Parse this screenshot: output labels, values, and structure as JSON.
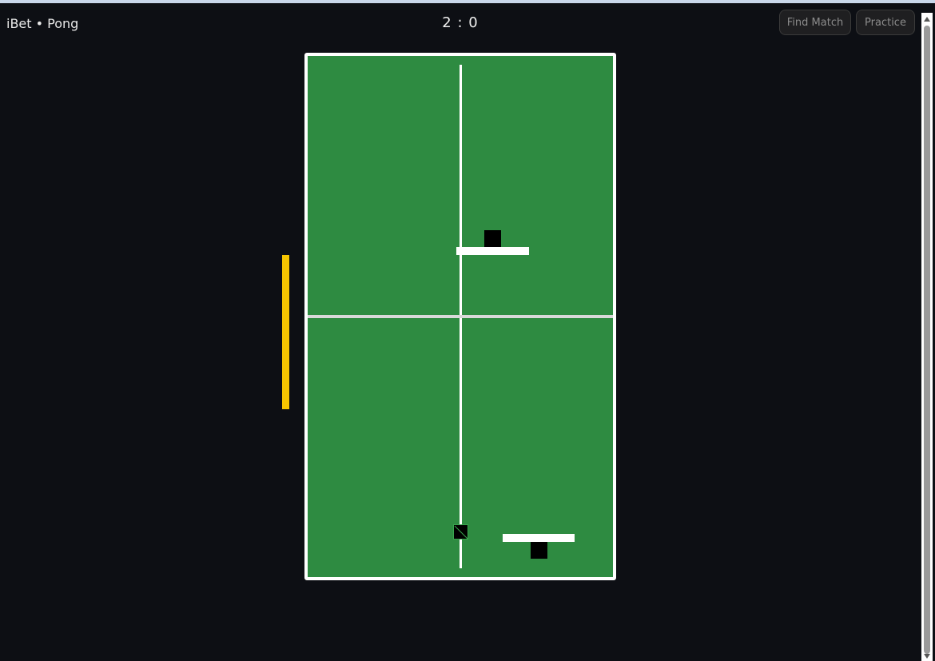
{
  "app": {
    "title": "iBet • Pong"
  },
  "scoreboard": {
    "score": "2 : 0"
  },
  "toolbar": {
    "find_match_label": "Find Match",
    "practice_label": "Practice"
  },
  "colors": {
    "background": "#0d0f14",
    "table": "#2e8b41",
    "lines": "#ffffff",
    "net": "#d9d9d9",
    "paddles": "#ffffff",
    "players": "#000000",
    "side_bar": "#f6c500",
    "button_bg": "#1f1f21",
    "button_text": "#8c8c8c"
  },
  "icons": {
    "scroll_up": "triangle-up-icon",
    "scroll_down": "triangle-down-icon"
  }
}
